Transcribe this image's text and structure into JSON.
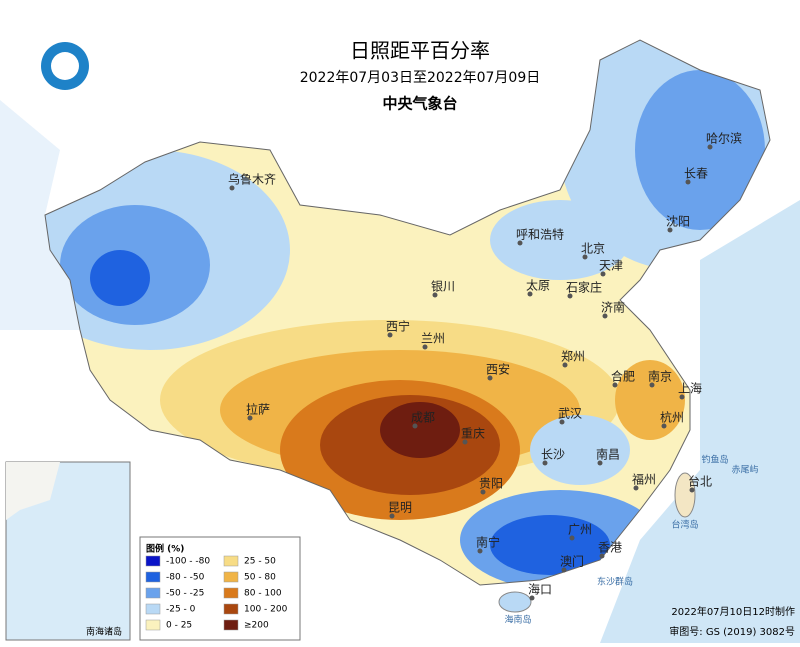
{
  "header": {
    "title": "日照距平百分率",
    "date_range": "2022年07月03日至2022年07月09日",
    "agency": "中央气象台"
  },
  "legend": {
    "title": "图例 (%)",
    "items": [
      {
        "label": "-100 - -80",
        "color": "#0a14c8"
      },
      {
        "label": "-80 - -50",
        "color": "#1f62e0"
      },
      {
        "label": "-50 - -25",
        "color": "#6aa2ec"
      },
      {
        "label": "-25 - 0",
        "color": "#b9d9f5"
      },
      {
        "label": "0 - 25",
        "color": "#fbf2be"
      },
      {
        "label": "25 - 50",
        "color": "#f7dc86"
      },
      {
        "label": "50 - 80",
        "color": "#f0b447"
      },
      {
        "label": "80 - 100",
        "color": "#d97a1c"
      },
      {
        "label": "100 - 200",
        "color": "#a9470f"
      },
      {
        "label": "≥200",
        "color": "#6e1d10"
      }
    ]
  },
  "cities": [
    "乌鲁木齐",
    "哈尔滨",
    "长春",
    "沈阳",
    "呼和浩特",
    "北京",
    "天津",
    "石家庄",
    "太原",
    "银川",
    "西宁",
    "兰州",
    "济南",
    "郑州",
    "西安",
    "合肥",
    "南京",
    "上海",
    "拉萨",
    "成都",
    "重庆",
    "武汉",
    "杭州",
    "长沙",
    "南昌",
    "福州",
    "台北",
    "贵阳",
    "昆明",
    "南宁",
    "广州",
    "香港",
    "澳门",
    "海口"
  ],
  "places": [
    "台湾岛",
    "东沙群岛",
    "钓鱼岛",
    "赤尾屿",
    "海南岛"
  ],
  "inset": {
    "label": "南海诸岛"
  },
  "footer": {
    "made": "2022年07月10日12时制作",
    "approval": "审图号: GS (2019) 3082号"
  }
}
